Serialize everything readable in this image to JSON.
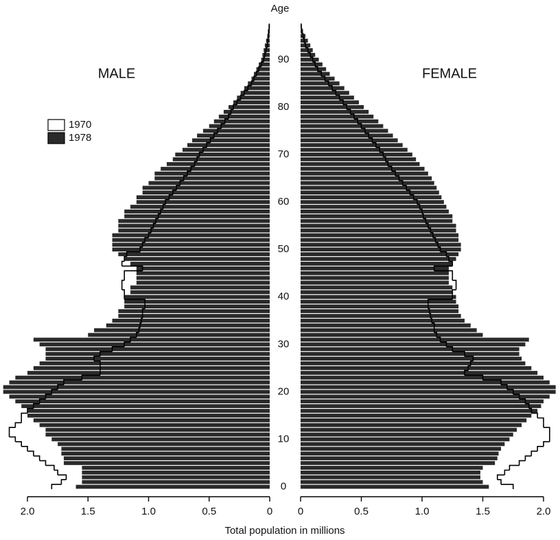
{
  "chart_data": {
    "type": "pyramid",
    "age_label": "Age",
    "x_label": "Total population in millions",
    "y": [
      0,
      1,
      2,
      3,
      4,
      5,
      6,
      7,
      8,
      9,
      10,
      11,
      12,
      13,
      14,
      15,
      16,
      17,
      18,
      19,
      20,
      21,
      22,
      23,
      24,
      25,
      26,
      27,
      28,
      29,
      30,
      31,
      32,
      33,
      34,
      35,
      36,
      37,
      38,
      39,
      40,
      41,
      42,
      43,
      44,
      45,
      46,
      47,
      48,
      49,
      50,
      51,
      52,
      53,
      54,
      55,
      56,
      57,
      58,
      59,
      60,
      61,
      62,
      63,
      64,
      65,
      66,
      67,
      68,
      69,
      70,
      71,
      72,
      73,
      74,
      75,
      76,
      77,
      78,
      79,
      80,
      81,
      82,
      83,
      84,
      85,
      86,
      87,
      88,
      89,
      90,
      91,
      92,
      93,
      94,
      95,
      96,
      97
    ],
    "ylim": [
      -0.5,
      97.5
    ],
    "yticks": [
      0,
      10,
      20,
      30,
      40,
      50,
      60,
      70,
      80,
      90
    ],
    "xlim": [
      0,
      2
    ],
    "xticks": [
      {
        "value": 2,
        "label": "2.0"
      },
      1.5,
      {
        "value": 1,
        "label": "1.0"
      },
      0.5,
      0
    ],
    "legend": [
      {
        "name": "1970",
        "color": "#ffffff",
        "draw": "outline"
      },
      {
        "name": "1978",
        "color": "#2a2a2a",
        "draw": "bar"
      }
    ],
    "panels": [
      {
        "title": "MALE",
        "side": "left",
        "series": [
          {
            "values": [
              1.8,
              1.72,
              1.68,
              1.75,
              1.78,
              1.85,
              1.9,
              1.95,
              2.0,
              2.05,
              2.1,
              2.15,
              2.15,
              2.1,
              2.05,
              2.05,
              2.0,
              1.95,
              1.9,
              1.85,
              1.8,
              1.75,
              1.7,
              1.55,
              1.4,
              1.4,
              1.4,
              1.45,
              1.4,
              1.3,
              1.2,
              1.15,
              1.1,
              1.08,
              1.07,
              1.06,
              1.05,
              1.05,
              1.03,
              1.03,
              1.2,
              1.2,
              1.22,
              1.22,
              1.2,
              1.2,
              1.05,
              1.22,
              1.2,
              1.18,
              1.07,
              1.05,
              1.03,
              1.0,
              0.98,
              0.96,
              0.94,
              0.92,
              0.9,
              0.88,
              0.86,
              0.83,
              0.8,
              0.77,
              0.74,
              0.71,
              0.68,
              0.65,
              0.62,
              0.6,
              0.58,
              0.55,
              0.52,
              0.49,
              0.46,
              0.43,
              0.4,
              0.37,
              0.34,
              0.32,
              0.3,
              0.27,
              0.24,
              0.21,
              0.18,
              0.15,
              0.13,
              0.11,
              0.09,
              0.07,
              0.05,
              0.04,
              0.03,
              0.02,
              0.015,
              0.01,
              0.005,
              0.003
            ]
          },
          {
            "values": [
              1.6,
              1.55,
              1.55,
              1.55,
              1.55,
              1.7,
              1.7,
              1.72,
              1.72,
              1.75,
              1.8,
              1.85,
              1.85,
              1.9,
              1.95,
              2.0,
              2.0,
              2.05,
              2.1,
              2.15,
              2.2,
              2.2,
              2.15,
              2.1,
              2.0,
              1.95,
              1.9,
              1.85,
              1.85,
              1.85,
              1.9,
              1.95,
              1.5,
              1.45,
              1.35,
              1.3,
              1.25,
              1.25,
              1.2,
              1.2,
              1.2,
              1.15,
              1.15,
              1.1,
              1.1,
              1.1,
              1.1,
              1.15,
              1.2,
              1.25,
              1.3,
              1.3,
              1.3,
              1.3,
              1.25,
              1.25,
              1.25,
              1.2,
              1.2,
              1.15,
              1.1,
              1.1,
              1.05,
              1.05,
              1.0,
              0.95,
              0.95,
              0.9,
              0.85,
              0.8,
              0.78,
              0.72,
              0.68,
              0.64,
              0.6,
              0.55,
              0.5,
              0.46,
              0.42,
              0.38,
              0.34,
              0.3,
              0.27,
              0.24,
              0.21,
              0.18,
              0.15,
              0.13,
              0.11,
              0.09,
              0.07,
              0.06,
              0.05,
              0.04,
              0.03,
              0.02,
              0.015,
              0.01
            ]
          }
        ]
      },
      {
        "title": "FEMALE",
        "side": "right",
        "series": [
          {
            "values": [
              1.75,
              1.65,
              1.62,
              1.68,
              1.72,
              1.8,
              1.85,
              1.9,
              1.95,
              2.0,
              2.05,
              2.05,
              2.05,
              2.0,
              2.0,
              1.95,
              1.9,
              1.88,
              1.85,
              1.8,
              1.75,
              1.7,
              1.65,
              1.5,
              1.35,
              1.38,
              1.4,
              1.42,
              1.35,
              1.25,
              1.2,
              1.15,
              1.12,
              1.1,
              1.1,
              1.08,
              1.07,
              1.06,
              1.05,
              1.05,
              1.25,
              1.25,
              1.28,
              1.28,
              1.25,
              1.25,
              1.1,
              1.25,
              1.22,
              1.2,
              1.15,
              1.13,
              1.11,
              1.09,
              1.07,
              1.05,
              1.03,
              1.01,
              1.0,
              0.98,
              0.96,
              0.93,
              0.9,
              0.87,
              0.84,
              0.81,
              0.78,
              0.75,
              0.72,
              0.7,
              0.68,
              0.65,
              0.62,
              0.59,
              0.56,
              0.53,
              0.5,
              0.47,
              0.44,
              0.41,
              0.38,
              0.35,
              0.32,
              0.29,
              0.26,
              0.23,
              0.2,
              0.17,
              0.14,
              0.12,
              0.1,
              0.08,
              0.06,
              0.04,
              0.03,
              0.02,
              0.01,
              0.005
            ]
          },
          {
            "values": [
              1.55,
              1.5,
              1.48,
              1.48,
              1.5,
              1.6,
              1.62,
              1.63,
              1.65,
              1.68,
              1.72,
              1.75,
              1.78,
              1.82,
              1.86,
              1.9,
              1.95,
              1.98,
              2.0,
              2.05,
              2.1,
              2.1,
              2.05,
              2.0,
              1.95,
              1.9,
              1.85,
              1.82,
              1.8,
              1.8,
              1.85,
              1.88,
              1.5,
              1.45,
              1.4,
              1.35,
              1.32,
              1.3,
              1.3,
              1.28,
              1.28,
              1.25,
              1.25,
              1.22,
              1.22,
              1.22,
              1.22,
              1.25,
              1.28,
              1.3,
              1.32,
              1.32,
              1.3,
              1.3,
              1.28,
              1.28,
              1.25,
              1.25,
              1.22,
              1.2,
              1.18,
              1.16,
              1.14,
              1.12,
              1.1,
              1.08,
              1.05,
              1.02,
              0.98,
              0.95,
              0.92,
              0.88,
              0.84,
              0.8,
              0.76,
              0.72,
              0.68,
              0.64,
              0.6,
              0.56,
              0.52,
              0.48,
              0.44,
              0.4,
              0.36,
              0.32,
              0.28,
              0.24,
              0.21,
              0.18,
              0.15,
              0.12,
              0.1,
              0.08,
              0.06,
              0.04,
              0.02,
              0.01
            ]
          }
        ]
      }
    ]
  }
}
